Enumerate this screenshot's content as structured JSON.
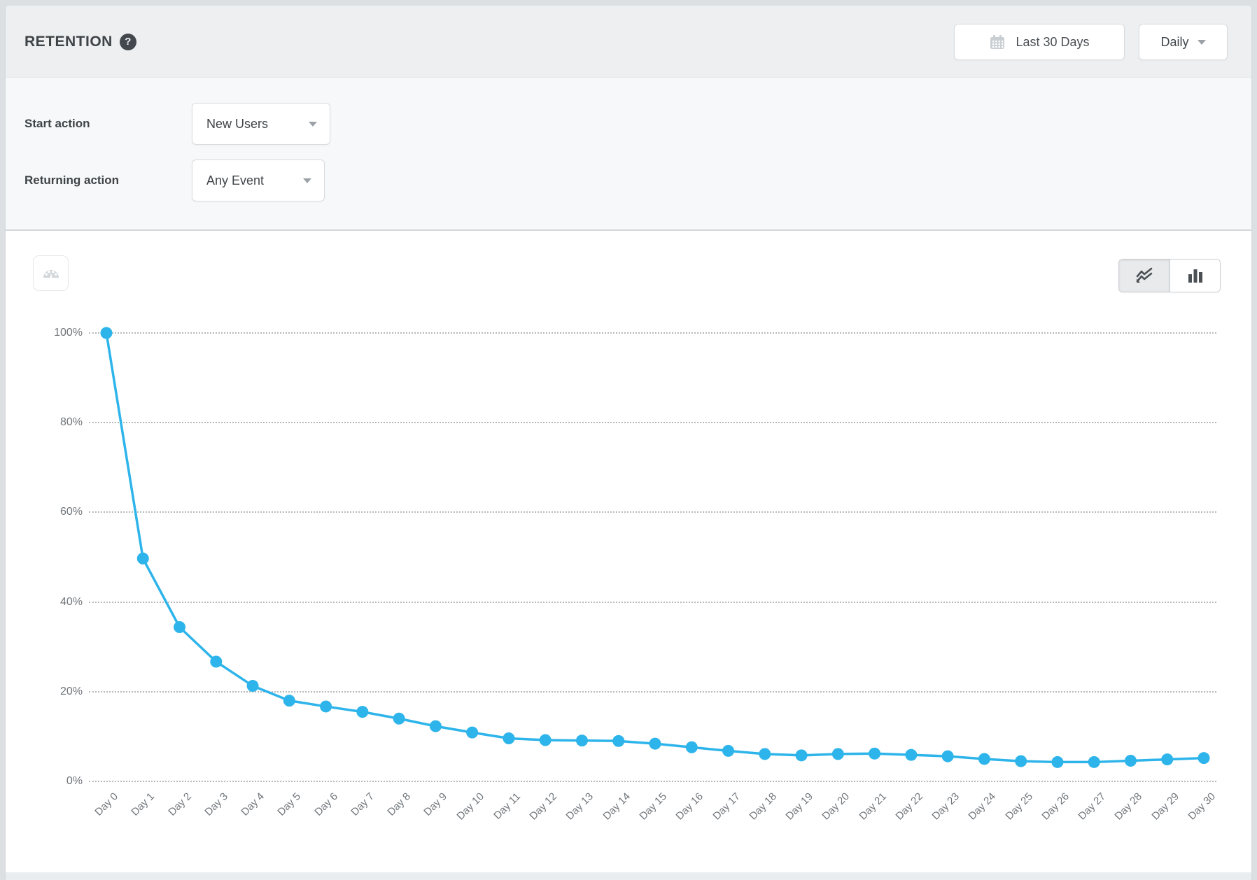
{
  "header": {
    "title": "RETENTION",
    "help_glyph": "?",
    "date_range_label": "Last 30 Days",
    "granularity_value": "Daily"
  },
  "filters": {
    "start_action": {
      "label": "Start action",
      "value": "New Users"
    },
    "returning_action": {
      "label": "Returning action",
      "value": "Any Event"
    }
  },
  "chart_toolbar": {
    "options": [
      {
        "name": "line",
        "selected": true
      },
      {
        "name": "bar",
        "selected": false
      }
    ],
    "active_type": "line"
  },
  "icons": {
    "help": "question-circle",
    "calendar": "calendar-grid",
    "caret": "caret-down",
    "gauge": "speedometer-gauge",
    "line_chart": "zigzag-line",
    "bar_chart": "vertical-bars"
  },
  "chart_data": {
    "type": "line",
    "title": "",
    "xlabel": "",
    "ylabel": "",
    "unit": "%",
    "ylim": [
      0,
      100
    ],
    "grid": "horizontal-dotted",
    "legend_position": "none",
    "line_color": "#2db4ea",
    "y_ticks": [
      "100%",
      "80%",
      "60%",
      "40%",
      "20%",
      "0%"
    ],
    "x_categories": [
      "Day 0",
      "Day 1",
      "Day 2",
      "Day 3",
      "Day 4",
      "Day 5",
      "Day 6",
      "Day 7",
      "Day 8",
      "Day 9",
      "Day 10",
      "Day 11",
      "Day 12",
      "Day 13",
      "Day 14",
      "Day 15",
      "Day 16",
      "Day 17",
      "Day 18",
      "Day 19",
      "Day 20",
      "Day 21",
      "Day 22",
      "Day 23",
      "Day 24",
      "Day 25",
      "Day 26",
      "Day 27",
      "Day 28",
      "Day 29",
      "Day 30"
    ],
    "values": [
      100,
      49.7,
      34.4,
      26.7,
      21.3,
      18.0,
      16.7,
      15.5,
      14.0,
      12.3,
      10.9,
      9.6,
      9.2,
      9.1,
      9.0,
      8.4,
      7.6,
      6.8,
      6.1,
      5.8,
      6.1,
      6.2,
      5.9,
      5.6,
      5.0,
      4.5,
      4.3,
      4.3,
      4.6,
      4.9,
      5.2
    ]
  }
}
